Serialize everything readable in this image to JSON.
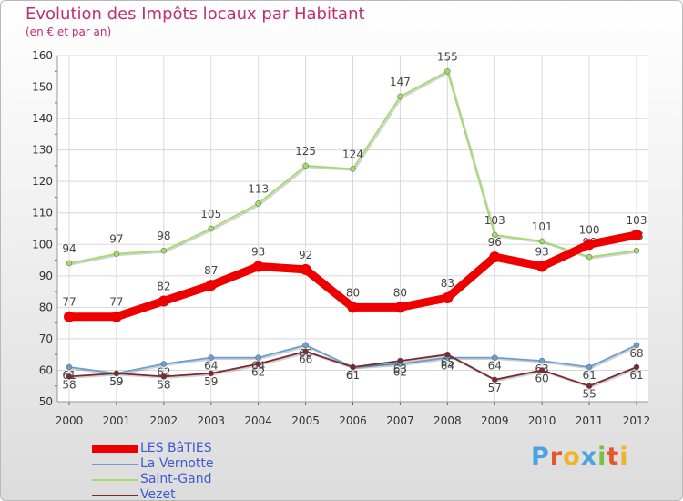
{
  "chart_data": {
    "type": "line",
    "title": "Evolution des Impôts locaux par Habitant",
    "subtitle": "(en € et par an)",
    "xlabel": "",
    "ylabel": "",
    "x": [
      "2000",
      "2001",
      "2002",
      "2003",
      "2004",
      "2005",
      "2006",
      "2007",
      "2008",
      "2009",
      "2010",
      "2011",
      "2012"
    ],
    "ylim": [
      50,
      160
    ],
    "yticks": [
      "50",
      "60",
      "70",
      "80",
      "90",
      "100",
      "110",
      "120",
      "130",
      "140",
      "150",
      "160"
    ],
    "grid": true,
    "legend_position": "bottom-left",
    "series": [
      {
        "name": "LES BâTIES",
        "color": "#ee0000",
        "values": [
          77,
          77,
          82,
          87,
          93,
          92,
          80,
          80,
          83,
          96,
          93,
          100,
          103
        ]
      },
      {
        "name": "La Vernotte",
        "color": "#6a9fcf",
        "values": [
          61,
          59,
          62,
          64,
          64,
          68,
          61,
          62,
          64,
          64,
          63,
          61,
          68
        ]
      },
      {
        "name": "Saint-Gand",
        "color": "#9fdc6a",
        "values": [
          94,
          97,
          98,
          105,
          113,
          125,
          124,
          147,
          155,
          103,
          101,
          96,
          98
        ]
      },
      {
        "name": "Vezet",
        "color": "#7a2a30",
        "values": [
          58,
          59,
          58,
          59,
          62,
          66,
          61,
          63,
          65,
          57,
          60,
          55,
          61
        ]
      }
    ]
  },
  "logo": {
    "letters": [
      "P",
      "r",
      "o",
      "x",
      "i",
      "t",
      "i"
    ]
  }
}
